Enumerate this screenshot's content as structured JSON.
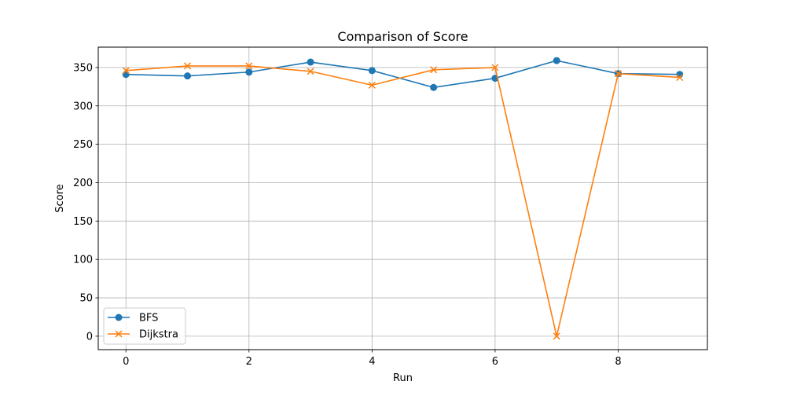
{
  "chart_data": {
    "type": "line",
    "title": "Comparison of Score",
    "xlabel": "Run",
    "ylabel": "Score",
    "x": [
      0,
      1,
      2,
      3,
      4,
      5,
      6,
      7,
      8,
      9
    ],
    "xlim": [
      -0.45,
      9.45
    ],
    "ylim": [
      -17.5,
      376.5
    ],
    "xticks": [
      0,
      2,
      4,
      6,
      8
    ],
    "yticks": [
      0,
      50,
      100,
      150,
      200,
      250,
      300,
      350
    ],
    "grid": true,
    "legend_position": "lower-left",
    "series": [
      {
        "name": "BFS",
        "marker": "circle",
        "color": "#1f77b4",
        "values": [
          341,
          339,
          344,
          357,
          346,
          324,
          336,
          359,
          342,
          341
        ]
      },
      {
        "name": "Dijkstra",
        "marker": "x",
        "color": "#ff7f0e",
        "values": [
          346,
          352,
          352,
          345,
          327,
          347,
          350,
          0,
          342,
          337
        ]
      }
    ]
  }
}
